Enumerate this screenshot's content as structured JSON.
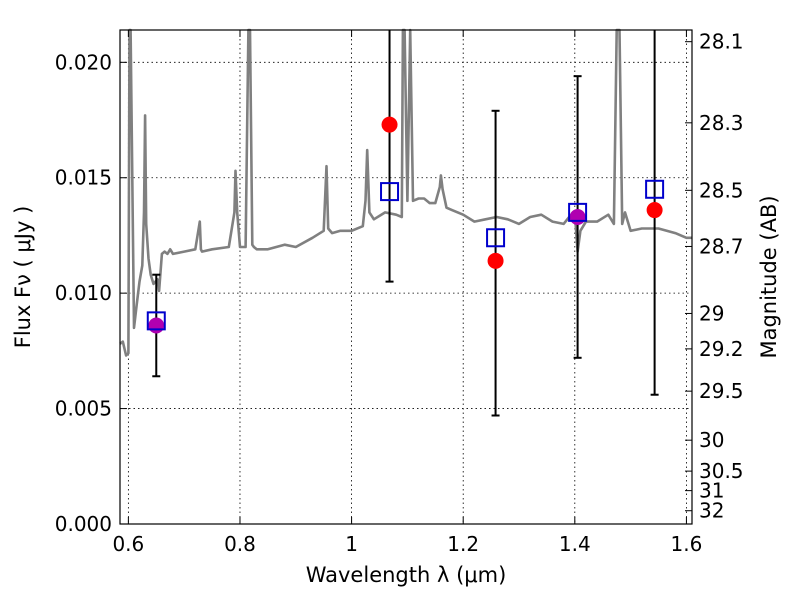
{
  "chart_data": {
    "type": "scatter",
    "xlabel": "Wavelength  λ (μm)",
    "ylabel": "Flux  Fν  ( μJy )",
    "ylabel_right": "Magnitude (AB)",
    "xlim": [
      0.585,
      1.61
    ],
    "ylim": [
      0.0,
      0.0214
    ],
    "grid": true,
    "x_ticks": [
      0.6,
      0.8,
      1.0,
      1.2,
      1.4,
      1.6
    ],
    "x_tick_labels": [
      "0.6",
      "0.8",
      "1",
      "1.2",
      "1.4",
      "1.6"
    ],
    "y_ticks": [
      0.0,
      0.005,
      0.01,
      0.015,
      0.02
    ],
    "y_tick_labels": [
      "0.000",
      "0.005",
      "0.010",
      "0.015",
      "0.020"
    ],
    "mag_ticks": [
      28.1,
      28.3,
      28.5,
      28.7,
      29,
      29.2,
      29.5,
      30,
      30.5,
      31,
      32
    ],
    "mag_tick_labels": [
      "28.1",
      "28.3",
      "28.5",
      "28.7",
      "29",
      "29.2",
      "29.5",
      "30",
      "30.5",
      "31",
      "32"
    ],
    "colors": {
      "spectrum": "#808080",
      "observed": "#ff0000",
      "model": "#0000cc",
      "overlap": "#b000b0",
      "errorbar": "#000000"
    },
    "series": [
      {
        "marker": "circle",
        "color": "#ff0000",
        "x": [
          0.65,
          1.068,
          1.258,
          1.405,
          1.543
        ],
        "y": [
          0.0086,
          0.0173,
          0.0114,
          0.0133,
          0.0136
        ]
      },
      {
        "marker": "square-open",
        "color": "#0000cc",
        "x": [
          0.65,
          1.068,
          1.258,
          1.405,
          1.543
        ],
        "y": [
          0.0088,
          0.0144,
          0.0124,
          0.0135,
          0.0145
        ],
        "yerr_low": [
          0.0064,
          0.0105,
          0.0047,
          0.0072,
          0.0056
        ],
        "yerr_high": [
          0.0108,
          0.0214,
          0.0179,
          0.0194,
          0.0214
        ]
      }
    ],
    "spectrum": {
      "x": [
        0.585,
        0.59,
        0.596,
        0.6,
        0.602,
        0.604,
        0.61,
        0.615,
        0.62,
        0.625,
        0.628,
        0.63,
        0.632,
        0.636,
        0.64,
        0.645,
        0.652,
        0.655,
        0.66,
        0.665,
        0.67,
        0.675,
        0.68,
        0.7,
        0.72,
        0.728,
        0.73,
        0.732,
        0.75,
        0.78,
        0.79,
        0.792,
        0.795,
        0.8,
        0.81,
        0.815,
        0.818,
        0.822,
        0.825,
        0.83,
        0.85,
        0.88,
        0.9,
        0.93,
        0.95,
        0.955,
        0.958,
        0.965,
        0.98,
        1.0,
        1.02,
        1.025,
        1.028,
        1.032,
        1.04,
        1.06,
        1.08,
        1.09,
        1.092,
        1.095,
        1.1,
        1.105,
        1.11,
        1.12,
        1.13,
        1.14,
        1.15,
        1.158,
        1.16,
        1.163,
        1.17,
        1.18,
        1.2,
        1.22,
        1.24,
        1.26,
        1.28,
        1.3,
        1.32,
        1.34,
        1.36,
        1.38,
        1.39,
        1.4,
        1.405,
        1.41,
        1.42,
        1.44,
        1.46,
        1.47,
        1.475,
        1.48,
        1.485,
        1.49,
        1.5,
        1.52,
        1.55,
        1.58,
        1.6,
        1.61
      ],
      "y": [
        0.0078,
        0.0079,
        0.0073,
        0.0074,
        0.0214,
        0.0214,
        0.0085,
        0.0095,
        0.0105,
        0.0112,
        0.0135,
        0.0177,
        0.013,
        0.0115,
        0.0108,
        0.0104,
        0.0106,
        0.0101,
        0.0117,
        0.0118,
        0.0117,
        0.0119,
        0.0117,
        0.0118,
        0.0119,
        0.0131,
        0.0119,
        0.0118,
        0.0119,
        0.012,
        0.0135,
        0.0153,
        0.0135,
        0.012,
        0.012,
        0.0214,
        0.0214,
        0.0121,
        0.012,
        0.0119,
        0.0119,
        0.0121,
        0.012,
        0.0124,
        0.0127,
        0.0155,
        0.0128,
        0.0126,
        0.0127,
        0.0127,
        0.0129,
        0.014,
        0.0162,
        0.0135,
        0.0132,
        0.0135,
        0.0134,
        0.0133,
        0.0214,
        0.0214,
        0.014,
        0.0214,
        0.014,
        0.0141,
        0.0141,
        0.0139,
        0.0139,
        0.0146,
        0.0151,
        0.0145,
        0.0137,
        0.0136,
        0.0134,
        0.0131,
        0.0132,
        0.0133,
        0.0132,
        0.013,
        0.0133,
        0.0134,
        0.0131,
        0.013,
        0.0133,
        0.0135,
        0.0118,
        0.0127,
        0.0131,
        0.0131,
        0.0134,
        0.013,
        0.0214,
        0.0214,
        0.013,
        0.0135,
        0.0127,
        0.0128,
        0.0128,
        0.0126,
        0.0124,
        0.0124
      ]
    }
  }
}
